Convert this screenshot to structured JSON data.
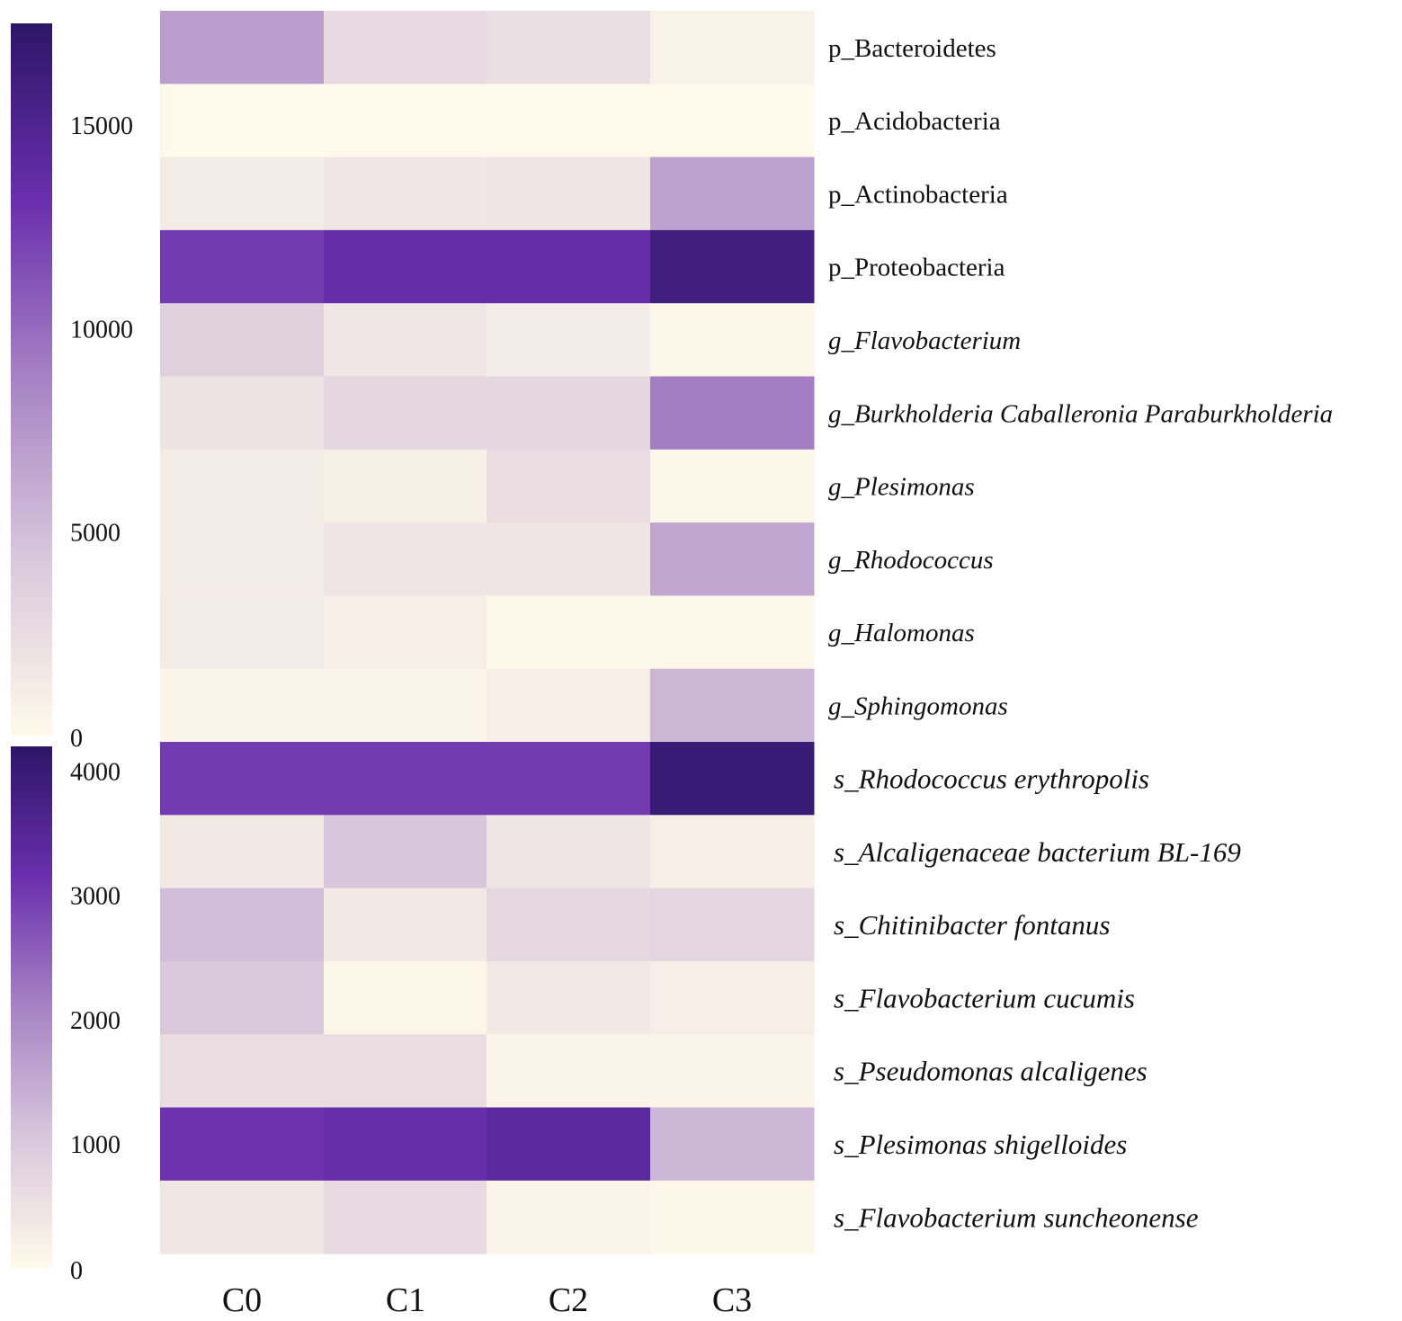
{
  "chart_data": {
    "type": "heatmap",
    "title": "",
    "columns": [
      "C0",
      "C1",
      "C2",
      "C3"
    ],
    "panels": [
      {
        "name": "phylum-genus",
        "colorbar": {
          "min": 0,
          "max": 17500,
          "ticks": [
            0,
            5000,
            10000,
            15000
          ]
        },
        "rows": [
          {
            "label": "p_Bacteroidetes",
            "rank": "p",
            "values": [
              7000,
              2700,
              2300,
              700
            ]
          },
          {
            "label": "p_Acidobacteria",
            "rank": "p",
            "values": [
              100,
              100,
              100,
              100
            ]
          },
          {
            "label": "p_Actinobacteria",
            "rank": "p",
            "values": [
              1300,
              1700,
              1800,
              6800
            ]
          },
          {
            "label": "p_Proteobacteria",
            "rank": "p",
            "values": [
              12500,
              13500,
              13500,
              16000
            ]
          },
          {
            "label": "g_Flavobacterium",
            "rank": "g",
            "values": [
              3500,
              1700,
              1200,
              300
            ]
          },
          {
            "label": "g_Burkholderia Caballeronia Paraburkholderia",
            "rank": "g",
            "values": [
              2000,
              3000,
              3000,
              9000
            ]
          },
          {
            "label": "g_Plesimonas",
            "rank": "g",
            "values": [
              1200,
              900,
              2400,
              300
            ]
          },
          {
            "label": "g_Rhodococcus",
            "rank": "g",
            "values": [
              1200,
              1800,
              1800,
              6500
            ]
          },
          {
            "label": "g_Halomonas",
            "rank": "g",
            "values": [
              1300,
              1000,
              150,
              200
            ]
          },
          {
            "label": "g_Sphingomonas",
            "rank": "g",
            "values": [
              500,
              400,
              1000,
              5500
            ]
          }
        ]
      },
      {
        "name": "species",
        "colorbar": {
          "min": 0,
          "max": 4200,
          "ticks": [
            0,
            1000,
            2000,
            3000,
            4000
          ]
        },
        "rows": [
          {
            "label": "s_Rhodococcus erythropolis",
            "rank": "s",
            "values": [
              3000,
              3000,
              3000,
              4000
            ]
          },
          {
            "label": "s_Alcaligenaceae bacterium BL-169",
            "rank": "s",
            "values": [
              350,
              1050,
              430,
              250
            ]
          },
          {
            "label": "s_Chitinibacter fontanus",
            "rank": "s",
            "values": [
              1200,
              350,
              700,
              750
            ]
          },
          {
            "label": "s_Flavobacterium cucumis",
            "rank": "s",
            "values": [
              1000,
              80,
              350,
              250
            ]
          },
          {
            "label": "s_Pseudomonas alcaligenes",
            "rank": "s",
            "values": [
              600,
              600,
              100,
              100
            ]
          },
          {
            "label": "s_Plesimonas shigelloides",
            "rank": "s",
            "values": [
              3100,
              3200,
              3400,
              1300
            ]
          },
          {
            "label": "s_Flavobacterium suncheonense",
            "rank": "s",
            "values": [
              400,
              650,
              100,
              60
            ]
          }
        ]
      }
    ],
    "colorscale": [
      "#fffaea",
      "#d8c7dc",
      "#a783c4",
      "#6a2fad",
      "#2c1668"
    ]
  }
}
